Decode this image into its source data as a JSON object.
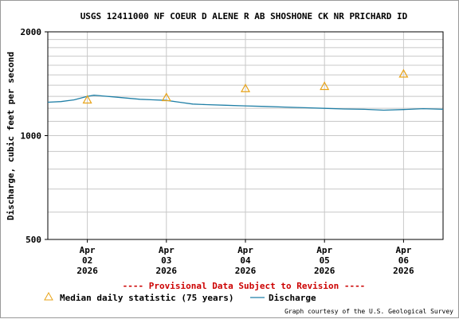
{
  "chart_data": {
    "type": "line",
    "title": "USGS 12411000 NF COEUR D ALENE R AB SHOSHONE CK NR PRICHARD ID",
    "ylabel": "Discharge, cubic feet per second",
    "xlabel": "",
    "y_scale": "log",
    "ylim": [
      500,
      2000
    ],
    "y_ticks": [
      500,
      1000,
      2000
    ],
    "x_range": [
      "2026-04-01T12:00",
      "2026-04-06T12:00"
    ],
    "x_ticks": [
      {
        "x": "2026-04-02",
        "line1": "Apr",
        "line2": "02",
        "line3": "2026"
      },
      {
        "x": "2026-04-03",
        "line1": "Apr",
        "line2": "03",
        "line3": "2026"
      },
      {
        "x": "2026-04-04",
        "line1": "Apr",
        "line2": "04",
        "line3": "2026"
      },
      {
        "x": "2026-04-05",
        "line1": "Apr",
        "line2": "05",
        "line3": "2026"
      },
      {
        "x": "2026-04-06",
        "line1": "Apr",
        "line2": "06",
        "line3": "2026"
      }
    ],
    "grid": true,
    "series": [
      {
        "name": "Discharge",
        "kind": "line",
        "color": "#1f7fa6",
        "points": [
          {
            "x": "2026-04-01T12:00",
            "y": 1250
          },
          {
            "x": "2026-04-01T16:00",
            "y": 1255
          },
          {
            "x": "2026-04-01T20:00",
            "y": 1270
          },
          {
            "x": "2026-04-02T00:00",
            "y": 1300
          },
          {
            "x": "2026-04-02T02:00",
            "y": 1310
          },
          {
            "x": "2026-04-02T04:00",
            "y": 1305
          },
          {
            "x": "2026-04-02T08:00",
            "y": 1295
          },
          {
            "x": "2026-04-02T12:00",
            "y": 1285
          },
          {
            "x": "2026-04-02T16:00",
            "y": 1275
          },
          {
            "x": "2026-04-02T20:00",
            "y": 1270
          },
          {
            "x": "2026-04-03T00:00",
            "y": 1265
          },
          {
            "x": "2026-04-03T04:00",
            "y": 1250
          },
          {
            "x": "2026-04-03T08:00",
            "y": 1235
          },
          {
            "x": "2026-04-03T12:00",
            "y": 1230
          },
          {
            "x": "2026-04-03T18:00",
            "y": 1225
          },
          {
            "x": "2026-04-04T00:00",
            "y": 1220
          },
          {
            "x": "2026-04-04T06:00",
            "y": 1215
          },
          {
            "x": "2026-04-04T12:00",
            "y": 1210
          },
          {
            "x": "2026-04-04T18:00",
            "y": 1205
          },
          {
            "x": "2026-04-05T00:00",
            "y": 1200
          },
          {
            "x": "2026-04-05T06:00",
            "y": 1195
          },
          {
            "x": "2026-04-05T12:00",
            "y": 1192
          },
          {
            "x": "2026-04-05T18:00",
            "y": 1185
          },
          {
            "x": "2026-04-06T00:00",
            "y": 1190
          },
          {
            "x": "2026-04-06T06:00",
            "y": 1197
          },
          {
            "x": "2026-04-06T12:00",
            "y": 1192
          }
        ]
      },
      {
        "name": "Median daily statistic (75 years)",
        "kind": "marker",
        "marker": "triangle",
        "color": "#e8a317",
        "points": [
          {
            "x": "2026-04-02T00:00",
            "y": 1270
          },
          {
            "x": "2026-04-03T00:00",
            "y": 1290
          },
          {
            "x": "2026-04-04T00:00",
            "y": 1370
          },
          {
            "x": "2026-04-05T00:00",
            "y": 1390
          },
          {
            "x": "2026-04-06T00:00",
            "y": 1510
          }
        ]
      }
    ],
    "legend_position": "bottom-left"
  },
  "notice": "---- Provisional Data Subject to Revision ----",
  "notice_color": "#cc0000",
  "legend": {
    "median_label": "Median daily statistic (75 years)",
    "discharge_label": "Discharge"
  },
  "credit": "Graph courtesy of the U.S. Geological Survey"
}
